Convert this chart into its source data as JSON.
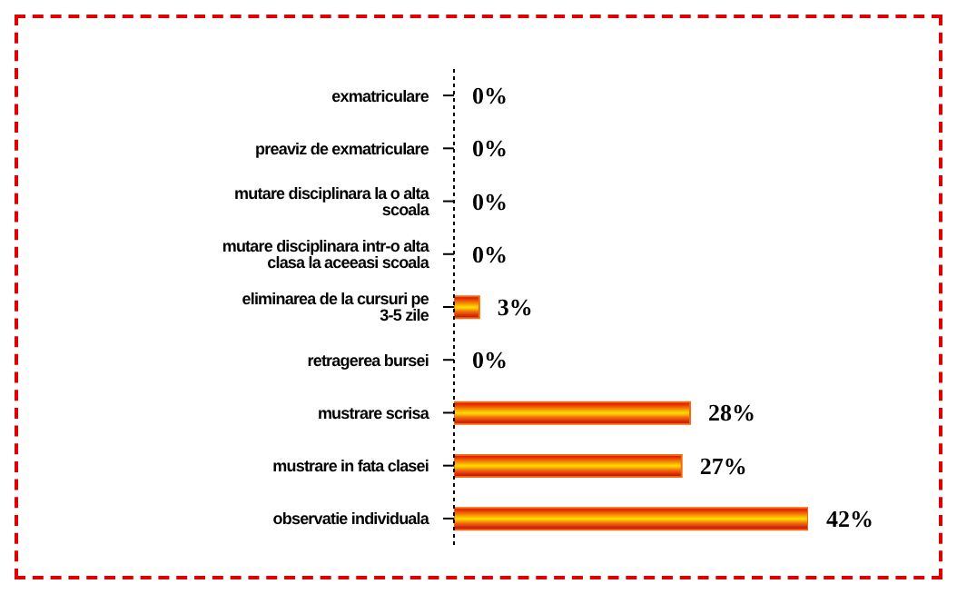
{
  "chart_data": {
    "type": "bar",
    "orientation": "horizontal",
    "categories": [
      "exmatriculare",
      "preaviz de exmatriculare",
      "mutare disciplinara la o alta scoala",
      "mutare disciplinara intr-o alta clasa la aceeasi scoala",
      "eliminarea de la cursuri pe 3-5 zile",
      "retragerea bursei",
      "mustrare scrisa",
      "mustrare in fata clasei",
      "observatie individuala"
    ],
    "values": [
      0,
      0,
      0,
      0,
      3,
      0,
      28,
      27,
      42
    ],
    "value_labels": [
      "0%",
      "0%",
      "0%",
      "0%",
      "3%",
      "0%",
      "28%",
      "27%",
      "42%"
    ],
    "color": "#f26a0f",
    "tick_labels": "y"
  }
}
